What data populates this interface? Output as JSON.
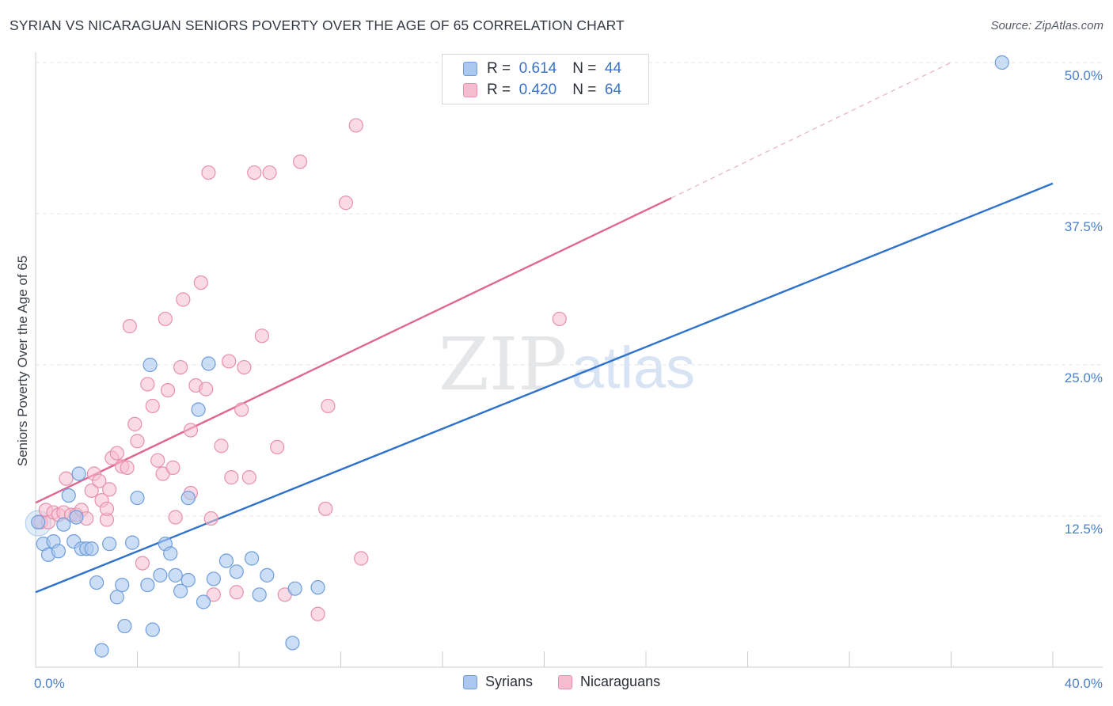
{
  "title": "SYRIAN VS NICARAGUAN SENIORS POVERTY OVER THE AGE OF 65 CORRELATION CHART",
  "source": "Source: ZipAtlas.com",
  "watermark": {
    "zip": "ZIP",
    "atlas": "atlas"
  },
  "colors": {
    "syrians_fill": "#aac8ef",
    "syrians_stroke": "#6d9ddc",
    "syrians_line": "#2f72cc",
    "nicaraguans_fill": "#f6bdd0",
    "nicaraguans_stroke": "#e88fae",
    "nicaraguans_line": "#e06890",
    "tick_label": "#4a7fcb",
    "grid": "#e2e4e8"
  },
  "legend": {
    "rows": [
      {
        "r_label": "R =",
        "r_value": "0.614",
        "n_label": "N =",
        "n_value": "44"
      },
      {
        "r_label": "R =",
        "r_value": "0.420",
        "n_label": "N =",
        "n_value": "64"
      }
    ]
  },
  "chart_data": {
    "type": "scatter",
    "title": "SYRIAN VS NICARAGUAN SENIORS POVERTY OVER THE AGE OF 65 CORRELATION CHART",
    "xlabel": "",
    "ylabel": "Seniors Poverty Over the Age of 65",
    "xlim": [
      0,
      40
    ],
    "ylim": [
      0,
      50
    ],
    "x_tick_labels": [
      "0.0%",
      "40.0%"
    ],
    "y_ticks": [
      12.5,
      25.0,
      37.5,
      50.0
    ],
    "y_tick_labels": [
      "12.5%",
      "25.0%",
      "37.5%",
      "50.0%"
    ],
    "grid": true,
    "legend_placement": "top-center",
    "series": [
      {
        "name": "Syrians",
        "r": 0.614,
        "n": 44,
        "trend": {
          "x": [
            0,
            40
          ],
          "y": [
            6.2,
            40.0
          ]
        },
        "points": [
          [
            0.1,
            12.0
          ],
          [
            0.3,
            10.2
          ],
          [
            0.5,
            9.3
          ],
          [
            0.7,
            10.4
          ],
          [
            0.9,
            9.6
          ],
          [
            1.1,
            11.8
          ],
          [
            1.3,
            14.2
          ],
          [
            1.5,
            10.4
          ],
          [
            1.6,
            12.4
          ],
          [
            1.7,
            16.0
          ],
          [
            1.8,
            9.8
          ],
          [
            2.0,
            9.8
          ],
          [
            2.2,
            9.8
          ],
          [
            2.4,
            7.0
          ],
          [
            2.6,
            1.4
          ],
          [
            2.9,
            10.2
          ],
          [
            3.2,
            5.8
          ],
          [
            3.4,
            6.8
          ],
          [
            3.5,
            3.4
          ],
          [
            3.8,
            10.3
          ],
          [
            4.0,
            14.0
          ],
          [
            4.4,
            6.8
          ],
          [
            4.5,
            25.0
          ],
          [
            4.6,
            3.1
          ],
          [
            4.9,
            7.6
          ],
          [
            5.1,
            10.2
          ],
          [
            5.3,
            9.4
          ],
          [
            5.5,
            7.6
          ],
          [
            5.7,
            6.3
          ],
          [
            6.0,
            7.2
          ],
          [
            6.0,
            14.0
          ],
          [
            6.4,
            21.3
          ],
          [
            6.6,
            5.4
          ],
          [
            6.8,
            25.1
          ],
          [
            7.0,
            7.3
          ],
          [
            7.5,
            8.8
          ],
          [
            7.9,
            7.9
          ],
          [
            8.5,
            9.0
          ],
          [
            8.8,
            6.0
          ],
          [
            9.1,
            7.6
          ],
          [
            10.1,
            2.0
          ],
          [
            10.2,
            6.5
          ],
          [
            11.1,
            6.6
          ],
          [
            38.0,
            50.0
          ]
        ]
      },
      {
        "name": "Nicaraguans",
        "r": 0.42,
        "n": 64,
        "trend": {
          "x": [
            0,
            25
          ],
          "y": [
            13.6,
            38.8
          ]
        },
        "trend_extension": {
          "x": [
            25,
            36
          ],
          "y": [
            38.8,
            50.0
          ]
        },
        "points": [
          [
            0.2,
            12.0
          ],
          [
            0.4,
            13.0
          ],
          [
            0.5,
            12.0
          ],
          [
            0.7,
            12.8
          ],
          [
            0.9,
            12.6
          ],
          [
            1.1,
            12.8
          ],
          [
            1.2,
            15.6
          ],
          [
            1.4,
            12.6
          ],
          [
            1.6,
            12.6
          ],
          [
            1.8,
            13.0
          ],
          [
            2.0,
            12.3
          ],
          [
            2.2,
            14.6
          ],
          [
            2.3,
            16.0
          ],
          [
            2.5,
            15.4
          ],
          [
            2.6,
            13.8
          ],
          [
            2.8,
            12.2
          ],
          [
            2.8,
            13.1
          ],
          [
            2.9,
            14.7
          ],
          [
            3.0,
            17.3
          ],
          [
            3.2,
            17.7
          ],
          [
            3.4,
            16.6
          ],
          [
            3.6,
            16.5
          ],
          [
            3.7,
            28.2
          ],
          [
            3.9,
            20.1
          ],
          [
            4.0,
            18.7
          ],
          [
            4.2,
            8.6
          ],
          [
            4.4,
            23.4
          ],
          [
            4.6,
            21.6
          ],
          [
            4.8,
            17.1
          ],
          [
            5.0,
            16.0
          ],
          [
            5.1,
            28.8
          ],
          [
            5.2,
            22.9
          ],
          [
            5.4,
            16.5
          ],
          [
            5.5,
            12.4
          ],
          [
            5.7,
            24.8
          ],
          [
            5.8,
            30.4
          ],
          [
            6.1,
            19.6
          ],
          [
            6.1,
            14.4
          ],
          [
            6.3,
            23.3
          ],
          [
            6.5,
            31.8
          ],
          [
            6.7,
            23.0
          ],
          [
            6.8,
            40.9
          ],
          [
            6.9,
            12.3
          ],
          [
            7.0,
            6.0
          ],
          [
            7.3,
            18.3
          ],
          [
            7.6,
            25.3
          ],
          [
            7.7,
            15.7
          ],
          [
            7.9,
            6.2
          ],
          [
            8.1,
            21.3
          ],
          [
            8.2,
            24.8
          ],
          [
            8.4,
            15.7
          ],
          [
            8.6,
            40.9
          ],
          [
            8.9,
            27.4
          ],
          [
            9.2,
            40.9
          ],
          [
            9.5,
            18.2
          ],
          [
            9.8,
            6.0
          ],
          [
            10.4,
            41.8
          ],
          [
            11.1,
            4.4
          ],
          [
            11.4,
            13.1
          ],
          [
            11.5,
            21.6
          ],
          [
            12.2,
            38.4
          ],
          [
            12.6,
            44.8
          ],
          [
            12.8,
            9.0
          ],
          [
            20.6,
            28.8
          ]
        ]
      }
    ]
  },
  "bottom_legend": [
    "Syrians",
    "Nicaraguans"
  ]
}
